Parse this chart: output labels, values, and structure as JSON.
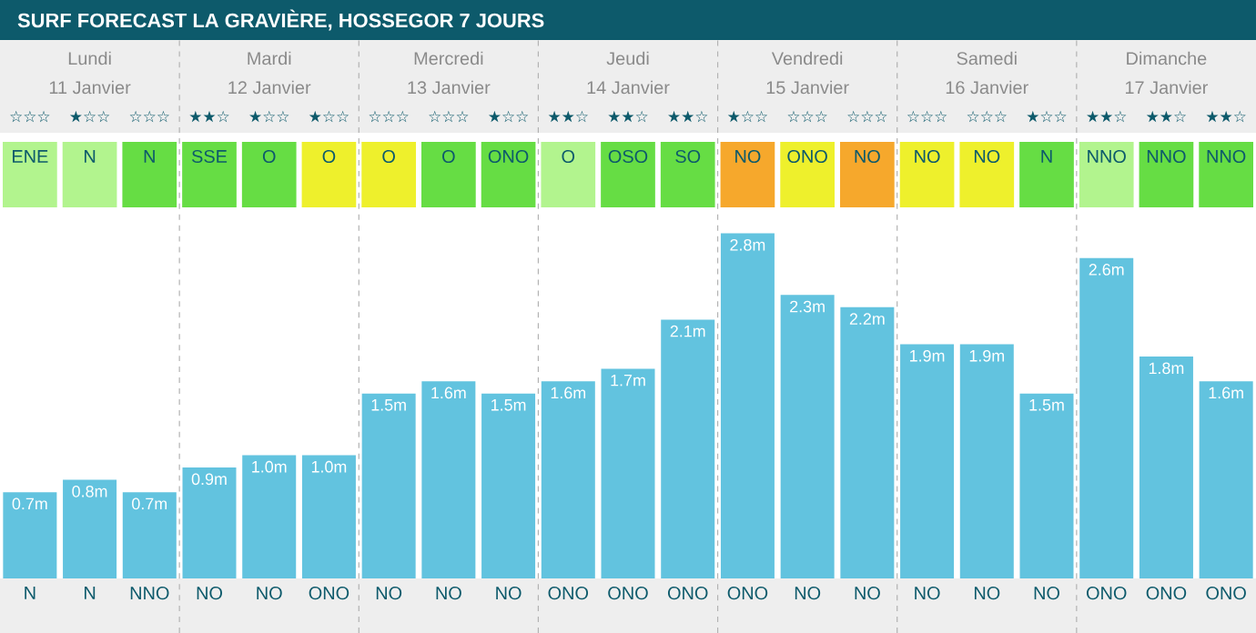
{
  "chart_data": [
    {
      "type": "other",
      "title": "SURF FORECAST LA GRAVIÈRE, HOSSEGOR 7 JOURS",
      "annotations": [
        "Lundi",
        "Mardi",
        "Mercredi",
        "Jeudi",
        "Vendredi",
        "Samedi",
        "Dimanche",
        "11 Janvier",
        "12 Janvier",
        "13 Janvier",
        "14 Janvier",
        "15 Janvier",
        "16 Janvier",
        "17 Janvier",
        "☆☆☆",
        "★☆☆",
        "☆☆☆",
        "★★☆",
        "★☆☆",
        "★☆☆",
        "☆☆☆",
        "☆☆☆",
        "★☆☆",
        "★★☆",
        "★★☆",
        "★★☆",
        "★☆☆",
        "☆☆☆",
        "☆☆☆",
        "☆☆☆",
        "☆☆☆",
        "★☆☆",
        "★★☆",
        "★★☆",
        "★★☆",
        "ENE",
        "N",
        "N",
        "SSE",
        "O",
        "O",
        "O",
        "O",
        "ONO",
        "O",
        "OSO",
        "SO",
        "NO",
        "ONO",
        "NO",
        "NO",
        "NO",
        "N",
        "NNO",
        "NNO",
        "NNO"
      ],
      "colors": [
        "#b2f48e",
        "#b2f48e",
        "#66dd44",
        "#66dd44",
        "#66dd44",
        "#eef02c",
        "#eef02c",
        "#66dd44",
        "#66dd44",
        "#b2f48e",
        "#66dd44",
        "#66dd44",
        "#f6a82c",
        "#eef02c",
        "#f6a82c",
        "#eef02c",
        "#eef02c",
        "#66dd44",
        "#b2f48e",
        "#66dd44",
        "#66dd44"
      ]
    },
    {
      "type": "bar",
      "categories": [
        "N",
        "N",
        "NNO",
        "NO",
        "NO",
        "ONO",
        "NO",
        "NO",
        "NO",
        "ONO",
        "ONO",
        "ONO",
        "ONO",
        "NO",
        "NO",
        "NO",
        "NO",
        "NO",
        "ONO",
        "ONO",
        "ONO"
      ],
      "values": [
        0.7,
        0.8,
        0.7,
        0.9,
        1.0,
        1.0,
        1.5,
        1.6,
        1.5,
        1.6,
        1.7,
        2.1,
        2.8,
        2.3,
        2.2,
        1.9,
        1.9,
        1.5,
        2.6,
        1.8,
        1.6
      ],
      "value_labels": [
        "0.7m",
        "0.8m",
        "0.7m",
        "0.9m",
        "1.0m",
        "1.0m",
        "1.5m",
        "1.6m",
        "1.5m",
        "1.6m",
        "1.7m",
        "2.1m",
        "2.8m",
        "2.3m",
        "2.2m",
        "1.9m",
        "1.9m",
        "1.5m",
        "2.6m",
        "1.8m",
        "1.6m"
      ],
      "color": "#62c3df",
      "tick_labels": "x"
    }
  ]
}
